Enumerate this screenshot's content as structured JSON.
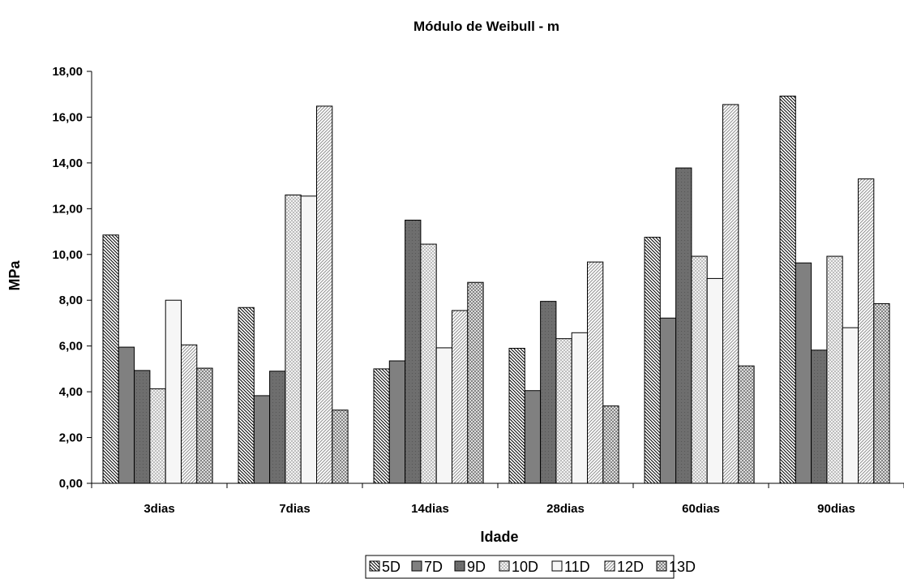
{
  "chart_data": {
    "type": "bar",
    "title": "Módulo de Weibull - m",
    "xlabel": "Idade",
    "ylabel": "MPa",
    "categories": [
      "3dias",
      "7dias",
      "14dias",
      "28dias",
      "60dias",
      "90dias"
    ],
    "ylim": [
      0,
      18
    ],
    "yticks": [
      "0,00",
      "2,00",
      "4,00",
      "6,00",
      "8,00",
      "10,00",
      "12,00",
      "14,00",
      "16,00",
      "18,00"
    ],
    "grid": false,
    "legend_position": "bottom",
    "series": [
      {
        "name": "5D",
        "values": [
          10.85,
          7.68,
          5.0,
          5.9,
          10.75,
          16.92
        ]
      },
      {
        "name": "7D",
        "values": [
          5.95,
          3.83,
          5.35,
          4.05,
          7.22,
          9.63
        ]
      },
      {
        "name": "9D",
        "values": [
          4.93,
          4.9,
          11.5,
          7.95,
          13.78,
          5.82
        ]
      },
      {
        "name": "10D",
        "values": [
          4.13,
          12.6,
          10.45,
          6.32,
          9.92,
          9.92
        ]
      },
      {
        "name": "11D",
        "values": [
          8.0,
          12.55,
          5.92,
          6.58,
          8.95,
          6.8
        ]
      },
      {
        "name": "12D",
        "values": [
          6.05,
          16.48,
          7.55,
          9.67,
          16.55,
          13.3
        ]
      },
      {
        "name": "13D",
        "values": [
          5.03,
          3.2,
          8.78,
          3.38,
          5.13,
          7.85
        ]
      }
    ]
  }
}
